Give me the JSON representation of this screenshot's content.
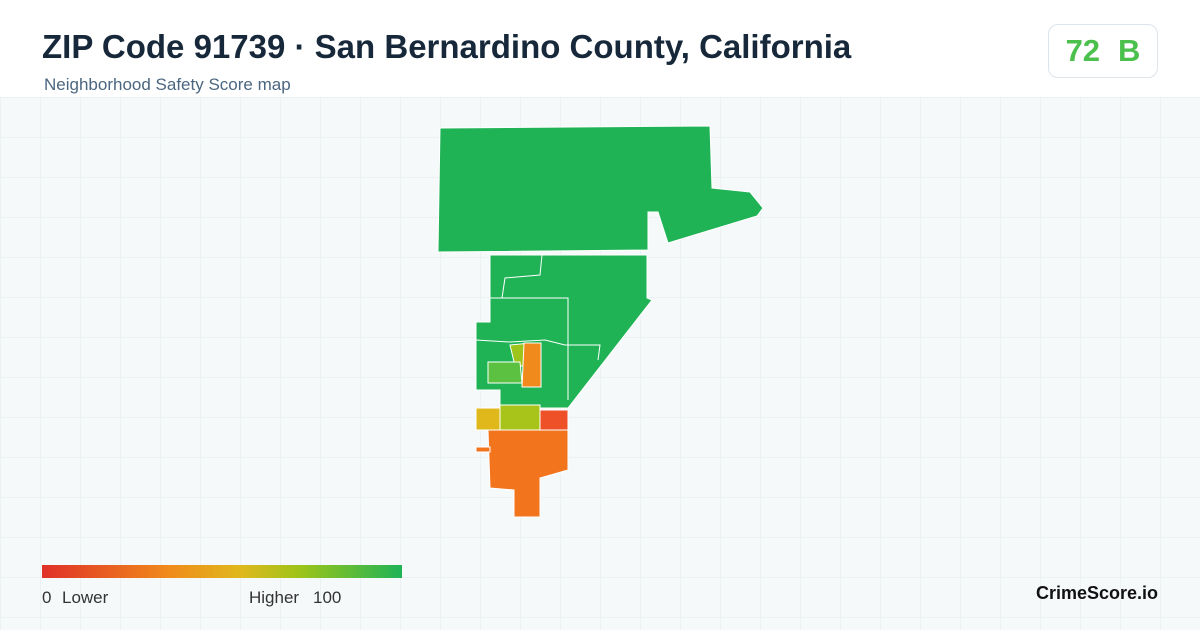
{
  "header": {
    "title": "ZIP Code 91739 · San Bernardino County, California",
    "subtitle": "Neighborhood Safety Score map"
  },
  "score": {
    "value": 72,
    "grade": "B"
  },
  "legend": {
    "min": 0,
    "min_label": "Lower",
    "max_label": "Higher",
    "max": 100
  },
  "brand": "CrimeScore.io"
}
